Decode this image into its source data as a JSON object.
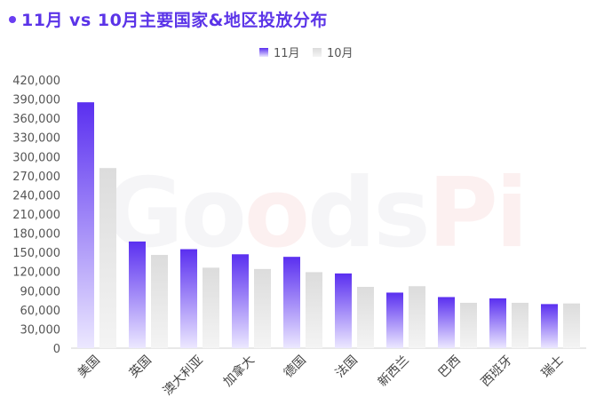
{
  "title": "11月 vs 10月主要国家&地区投放分布",
  "watermark": {
    "part1": "Go",
    "part2": "o",
    "part3": "ds",
    "part4": "Pi"
  },
  "chart_data": {
    "type": "bar",
    "categories": [
      "美国",
      "英国",
      "澳大利亚",
      "加拿大",
      "德国",
      "法国",
      "新西兰",
      "巴西",
      "西班牙",
      "瑞士"
    ],
    "series": [
      {
        "name": "11月",
        "values": [
          385000,
          167000,
          155000,
          147000,
          143000,
          117000,
          87000,
          80000,
          78000,
          69000
        ],
        "color": "#5a2ff0"
      },
      {
        "name": "10月",
        "values": [
          282000,
          146000,
          126000,
          124000,
          119000,
          96000,
          97000,
          71000,
          71000,
          70000
        ],
        "color": "#d9d9d9"
      }
    ],
    "yticks": [
      "0",
      "30,000",
      "60,000",
      "90,000",
      "120,000",
      "150,000",
      "180,000",
      "210,000",
      "240,000",
      "270,000",
      "300,000",
      "330,000",
      "360,000",
      "390,000",
      "420,000"
    ],
    "ylim": [
      0,
      420000
    ],
    "legend_position": "top-center",
    "grid": false
  }
}
